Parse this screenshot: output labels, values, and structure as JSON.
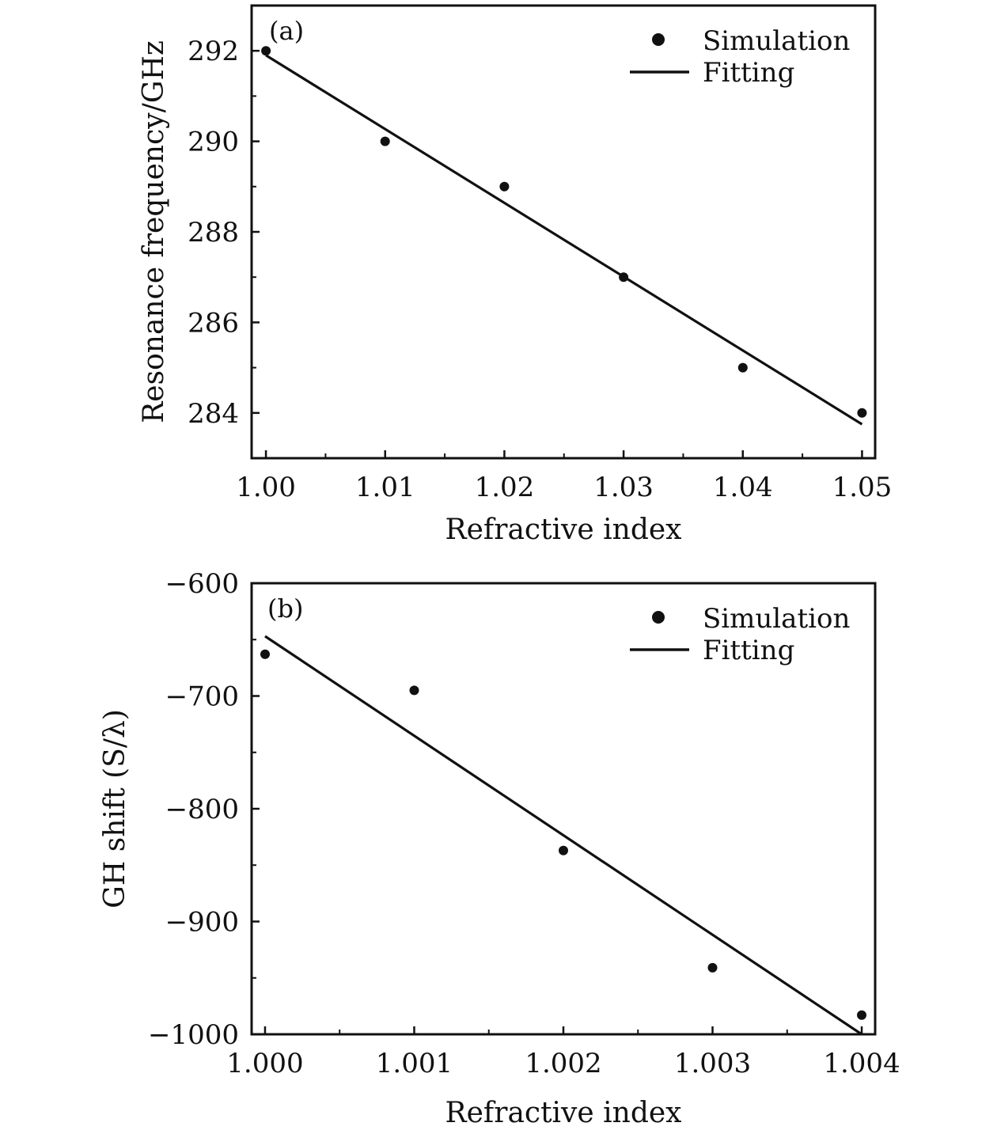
{
  "chart_data": [
    {
      "type": "scatter",
      "panel_label": "(a)",
      "xlabel": "Refractive index",
      "ylabel": "Resonance frequency/GHz",
      "xlim": [
        0.9988,
        1.0511
      ],
      "ylim": [
        283.0,
        293.0
      ],
      "xticks": [
        1.0,
        1.01,
        1.02,
        1.03,
        1.04,
        1.05
      ],
      "xtick_labels": [
        "1.00",
        "1.01",
        "1.02",
        "1.03",
        "1.04",
        "1.05"
      ],
      "yticks": [
        284,
        286,
        288,
        290,
        292
      ],
      "ytick_labels": [
        "284",
        "286",
        "288",
        "290",
        "292"
      ],
      "legend": {
        "position": "top-right",
        "entries": [
          "Simulation",
          "Fitting"
        ]
      },
      "series": [
        {
          "name": "Simulation",
          "kind": "scatter",
          "x": [
            1.0,
            1.01,
            1.02,
            1.03,
            1.04,
            1.05
          ],
          "y": [
            292.0,
            290.0,
            289.0,
            287.0,
            285.0,
            284.0
          ]
        },
        {
          "name": "Fitting",
          "kind": "line",
          "x": [
            1.0,
            1.05
          ],
          "y": [
            291.9,
            283.75
          ]
        }
      ],
      "colors": {
        "ink": "#111111"
      }
    },
    {
      "type": "scatter",
      "panel_label": "(b)",
      "xlabel": "Refractive index",
      "ylabel": "GH shift (S/λ)",
      "xlim": [
        0.99991,
        1.00409
      ],
      "ylim": [
        -1000,
        -600
      ],
      "xticks": [
        1.0,
        1.001,
        1.002,
        1.003,
        1.004
      ],
      "xtick_labels": [
        "1.000",
        "1.001",
        "1.002",
        "1.003",
        "1.004"
      ],
      "yticks": [
        -1000,
        -900,
        -800,
        -700,
        -600
      ],
      "ytick_labels": [
        "−1000",
        "−900",
        "−800",
        "−700",
        "−600"
      ],
      "legend": {
        "position": "top-right",
        "entries": [
          "Simulation",
          "Fitting"
        ]
      },
      "series": [
        {
          "name": "Simulation",
          "kind": "scatter",
          "x": [
            1.0,
            1.001,
            1.002,
            1.003,
            1.004
          ],
          "y": [
            -663,
            -695,
            -837,
            -941,
            -983
          ]
        },
        {
          "name": "Fitting",
          "kind": "line",
          "x": [
            1.0,
            1.004
          ],
          "y": [
            -647,
            -1000
          ]
        }
      ],
      "colors": {
        "ink": "#111111"
      }
    }
  ]
}
